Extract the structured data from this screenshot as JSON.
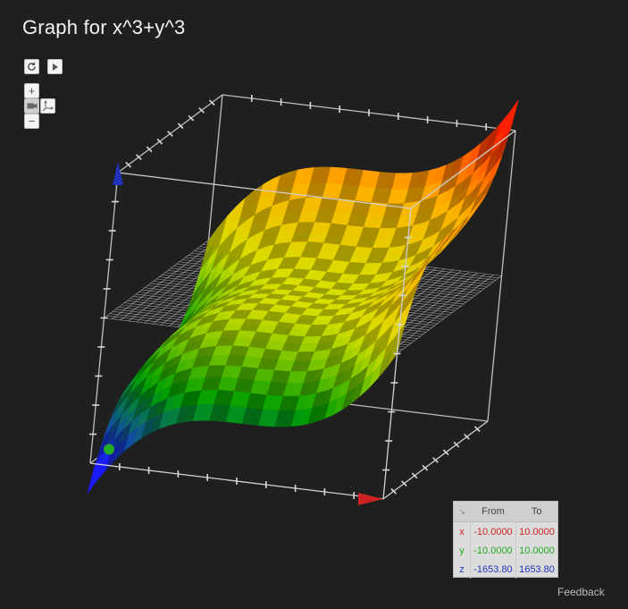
{
  "title": "Graph for x^3+y^3",
  "controls": {
    "reset_icon": "refresh-icon",
    "play_icon": "play-icon",
    "zoom_in_label": "+",
    "zoom_out_label": "−",
    "camera_icon": "camera-icon",
    "axes_icon": "axes-icon"
  },
  "range_table": {
    "corner_icon": "resize-icon",
    "corner_glyph": "↘",
    "headers": [
      "From",
      "To"
    ],
    "rows": [
      {
        "var": "x",
        "from": "-10.0000",
        "to": "10.0000",
        "color": "#cc2222"
      },
      {
        "var": "y",
        "from": "-10.0000",
        "to": "10.0000",
        "color": "#22aa22"
      },
      {
        "var": "z",
        "from": "-1653.80",
        "to": "1653.80",
        "color": "#2233bb"
      }
    ]
  },
  "feedback_label": "Feedback",
  "chart_data": {
    "type": "surface",
    "function": "x^3+y^3",
    "x_range": [
      -10,
      10
    ],
    "y_range": [
      -10,
      10
    ],
    "z_range": [
      -1653.8,
      1653.8
    ],
    "colormap": [
      "#1a1aff",
      "#00a000",
      "#d8e000",
      "#ffb000",
      "#ff2000"
    ],
    "axis_colors": {
      "x": "#cc2222",
      "y": "#22aa22",
      "z": "#2233bb"
    },
    "zero_plane": true
  }
}
